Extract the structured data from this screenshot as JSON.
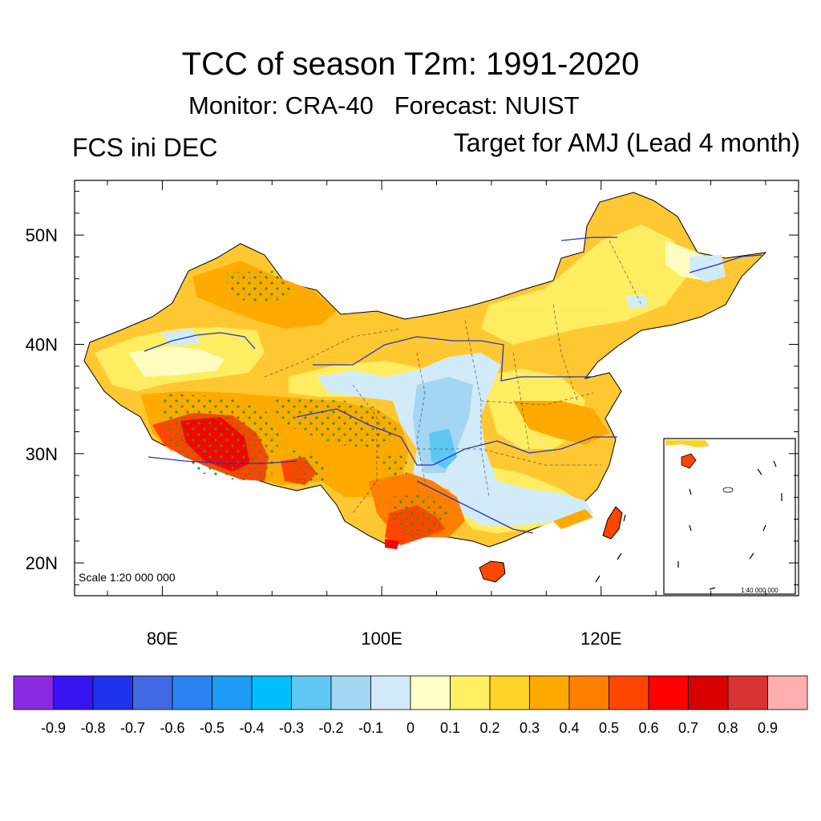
{
  "title": "TCC of season T2m: 1991-2020",
  "subtitle": "Monitor: CRA-40   Forecast: NUIST",
  "left_string": "FCS ini DEC",
  "right_string": "Target for AMJ (Lead 4 month)",
  "map": {
    "scale_label": "Scale 1:20 000 000",
    "inset_scale_label": "1:40 000 000",
    "lon_labels": [
      "80E",
      "100E",
      "120E"
    ],
    "lat_labels": [
      "50N",
      "40N",
      "30N",
      "20N"
    ],
    "lon_range": [
      72,
      138
    ],
    "lat_range": [
      17,
      55
    ]
  },
  "colorbar": {
    "colors": [
      "#8a2be2",
      "#3814f2",
      "#1f32ee",
      "#4169e1",
      "#2b82f0",
      "#1e9bf5",
      "#00bfff",
      "#5fc7f3",
      "#a3d6f2",
      "#d2ebf8",
      "#ffffc8",
      "#fff064",
      "#ffd228",
      "#ffaa00",
      "#ff7f00",
      "#ff4600",
      "#ff0000",
      "#d90000",
      "#d93232",
      "#ffafaf"
    ],
    "labels": [
      "-0.9",
      "-0.8",
      "-0.7",
      "-0.6",
      "-0.5",
      "-0.4",
      "-0.3",
      "-0.2",
      "-0.1",
      "0",
      "0.1",
      "0.2",
      "0.3",
      "0.4",
      "0.5",
      "0.6",
      "0.7",
      "0.8",
      "0.9"
    ]
  }
}
